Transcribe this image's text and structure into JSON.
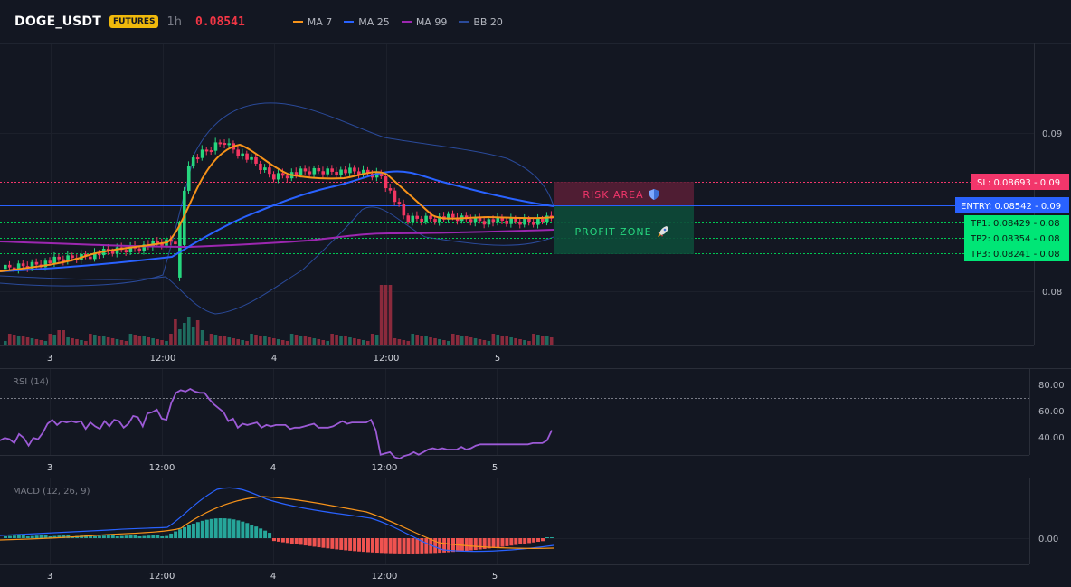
{
  "header": {
    "symbol": "DOGE_USDT",
    "badge": "FUTURES",
    "interval": "1h",
    "price": "0.08541",
    "legend": [
      {
        "label": "MA 7",
        "color": "#f7931a"
      },
      {
        "label": "MA 25",
        "color": "#2962ff"
      },
      {
        "label": "MA 99",
        "color": "#9c27b0"
      },
      {
        "label": "BB 20",
        "color": "#2a4a9a"
      }
    ]
  },
  "colors": {
    "up": "#26d67e",
    "down": "#f23661",
    "vol_up": "#1e6b5e",
    "vol_down": "#8a2a3c",
    "sl": "#f2366b",
    "entry": "#2962ff",
    "tp": "#00c853",
    "rsi": "#9c5ad6",
    "macd": "#2962ff",
    "signal": "#f7931a",
    "hist_up": "#26a69a",
    "hist_down": "#ef5350"
  },
  "price_axis": {
    "ticks": [
      "0.09",
      "0.08"
    ]
  },
  "time_axis": {
    "labels": [
      "3",
      "12:00",
      "4",
      "12:00",
      "5"
    ]
  },
  "levels": {
    "sl": {
      "label": "SL: 0.08693 - 0.09",
      "value": 0.08693
    },
    "entry": {
      "label": "ENTRY: 0.08542 - 0.09",
      "value": 0.08542
    },
    "tps": [
      {
        "label": "TP1: 0.08429 - 0.08",
        "value": 0.08429
      },
      {
        "label": "TP2: 0.08354 - 0.08",
        "value": 0.08354
      },
      {
        "label": "TP3: 0.08241 - 0.08",
        "value": 0.08241
      }
    ]
  },
  "zones": {
    "risk_label": "RISK AREA",
    "risk_icon": "shield-icon",
    "profit_label": "PROFIT ZONE",
    "profit_icon": "rocket-icon"
  },
  "rsi": {
    "title": "RSI (14)",
    "ticks": [
      "80.00",
      "60.00",
      "40.00"
    ],
    "values": [
      47,
      49,
      48,
      45,
      52,
      49,
      43,
      49,
      48,
      53,
      60,
      63,
      59,
      62,
      61,
      62,
      61,
      62,
      56,
      61,
      58,
      56,
      62,
      58,
      63,
      62,
      57,
      60,
      66,
      65,
      58,
      68,
      69,
      71,
      64,
      63,
      76,
      84,
      86,
      85,
      87,
      85,
      84,
      84,
      79,
      75,
      72,
      69,
      62,
      64,
      57,
      60,
      59,
      60,
      61,
      57,
      59,
      58,
      59,
      59,
      59,
      56,
      57,
      57,
      58,
      59,
      60,
      57,
      57,
      57,
      58,
      60,
      62,
      60,
      61,
      61,
      61,
      61,
      63,
      55,
      36,
      37,
      38,
      34,
      33,
      35,
      36,
      38,
      36,
      38,
      40,
      41,
      40,
      41,
      40,
      40,
      40,
      42,
      40,
      41,
      43,
      44,
      44,
      44,
      44,
      44,
      44,
      44,
      44,
      44,
      44,
      44,
      45,
      45,
      45,
      47,
      55
    ]
  },
  "macd": {
    "title": "MACD (12, 26, 9)",
    "tick": "0.00"
  }
}
